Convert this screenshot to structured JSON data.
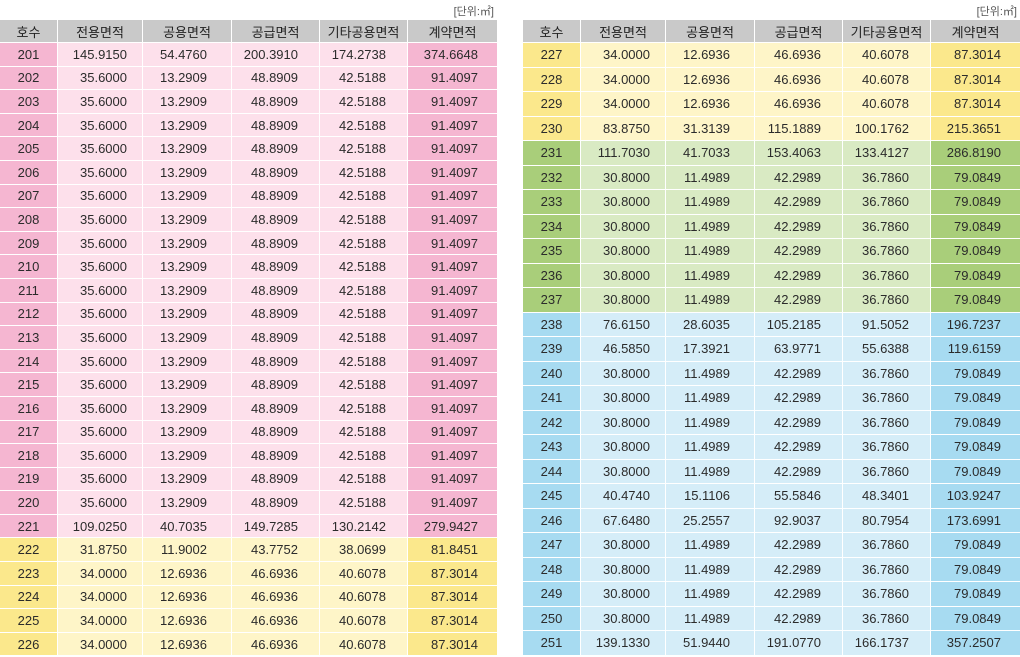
{
  "header_color": "#c9c9c9",
  "tables": [
    {
      "unit_label": "[단위:㎡]",
      "columns": [
        "호수",
        "전용면적",
        "공용면적",
        "공급면적",
        "기타공용면적",
        "계약면적"
      ],
      "sections": [
        {
          "key_color": "#f5b6d1",
          "cell_color": "#fde0eb",
          "rows": [
            [
              "201",
              "145.9150",
              "54.4760",
              "200.3910",
              "174.2738",
              "374.6648"
            ],
            [
              "202",
              "35.6000",
              "13.2909",
              "48.8909",
              "42.5188",
              "91.4097"
            ],
            [
              "203",
              "35.6000",
              "13.2909",
              "48.8909",
              "42.5188",
              "91.4097"
            ],
            [
              "204",
              "35.6000",
              "13.2909",
              "48.8909",
              "42.5188",
              "91.4097"
            ],
            [
              "205",
              "35.6000",
              "13.2909",
              "48.8909",
              "42.5188",
              "91.4097"
            ],
            [
              "206",
              "35.6000",
              "13.2909",
              "48.8909",
              "42.5188",
              "91.4097"
            ],
            [
              "207",
              "35.6000",
              "13.2909",
              "48.8909",
              "42.5188",
              "91.4097"
            ],
            [
              "208",
              "35.6000",
              "13.2909",
              "48.8909",
              "42.5188",
              "91.4097"
            ],
            [
              "209",
              "35.6000",
              "13.2909",
              "48.8909",
              "42.5188",
              "91.4097"
            ],
            [
              "210",
              "35.6000",
              "13.2909",
              "48.8909",
              "42.5188",
              "91.4097"
            ],
            [
              "211",
              "35.6000",
              "13.2909",
              "48.8909",
              "42.5188",
              "91.4097"
            ],
            [
              "212",
              "35.6000",
              "13.2909",
              "48.8909",
              "42.5188",
              "91.4097"
            ],
            [
              "213",
              "35.6000",
              "13.2909",
              "48.8909",
              "42.5188",
              "91.4097"
            ],
            [
              "214",
              "35.6000",
              "13.2909",
              "48.8909",
              "42.5188",
              "91.4097"
            ],
            [
              "215",
              "35.6000",
              "13.2909",
              "48.8909",
              "42.5188",
              "91.4097"
            ],
            [
              "216",
              "35.6000",
              "13.2909",
              "48.8909",
              "42.5188",
              "91.4097"
            ],
            [
              "217",
              "35.6000",
              "13.2909",
              "48.8909",
              "42.5188",
              "91.4097"
            ],
            [
              "218",
              "35.6000",
              "13.2909",
              "48.8909",
              "42.5188",
              "91.4097"
            ],
            [
              "219",
              "35.6000",
              "13.2909",
              "48.8909",
              "42.5188",
              "91.4097"
            ],
            [
              "220",
              "35.6000",
              "13.2909",
              "48.8909",
              "42.5188",
              "91.4097"
            ],
            [
              "221",
              "109.0250",
              "40.7035",
              "149.7285",
              "130.2142",
              "279.9427"
            ]
          ]
        },
        {
          "key_color": "#fbe88c",
          "cell_color": "#fef5c8",
          "rows": [
            [
              "222",
              "31.8750",
              "11.9002",
              "43.7752",
              "38.0699",
              "81.8451"
            ],
            [
              "223",
              "34.0000",
              "12.6936",
              "46.6936",
              "40.6078",
              "87.3014"
            ],
            [
              "224",
              "34.0000",
              "12.6936",
              "46.6936",
              "40.6078",
              "87.3014"
            ],
            [
              "225",
              "34.0000",
              "12.6936",
              "46.6936",
              "40.6078",
              "87.3014"
            ],
            [
              "226",
              "34.0000",
              "12.6936",
              "46.6936",
              "40.6078",
              "87.3014"
            ]
          ]
        }
      ]
    },
    {
      "unit_label": "[단위:㎡]",
      "columns": [
        "호수",
        "전용면적",
        "공용면적",
        "공급면적",
        "기타공용면적",
        "계약면적"
      ],
      "sections": [
        {
          "key_color": "#fbe88c",
          "cell_color": "#fef5c8",
          "rows": [
            [
              "227",
              "34.0000",
              "12.6936",
              "46.6936",
              "40.6078",
              "87.3014"
            ],
            [
              "228",
              "34.0000",
              "12.6936",
              "46.6936",
              "40.6078",
              "87.3014"
            ],
            [
              "229",
              "34.0000",
              "12.6936",
              "46.6936",
              "40.6078",
              "87.3014"
            ],
            [
              "230",
              "83.8750",
              "31.3139",
              "115.1889",
              "100.1762",
              "215.3651"
            ]
          ]
        },
        {
          "key_color": "#a9ce7a",
          "cell_color": "#d9eac3",
          "rows": [
            [
              "231",
              "111.7030",
              "41.7033",
              "153.4063",
              "133.4127",
              "286.8190"
            ],
            [
              "232",
              "30.8000",
              "11.4989",
              "42.2989",
              "36.7860",
              "79.0849"
            ],
            [
              "233",
              "30.8000",
              "11.4989",
              "42.2989",
              "36.7860",
              "79.0849"
            ],
            [
              "234",
              "30.8000",
              "11.4989",
              "42.2989",
              "36.7860",
              "79.0849"
            ],
            [
              "235",
              "30.8000",
              "11.4989",
              "42.2989",
              "36.7860",
              "79.0849"
            ],
            [
              "236",
              "30.8000",
              "11.4989",
              "42.2989",
              "36.7860",
              "79.0849"
            ],
            [
              "237",
              "30.8000",
              "11.4989",
              "42.2989",
              "36.7860",
              "79.0849"
            ]
          ]
        },
        {
          "key_color": "#a7dbf1",
          "cell_color": "#d5edf8",
          "rows": [
            [
              "238",
              "76.6150",
              "28.6035",
              "105.2185",
              "91.5052",
              "196.7237"
            ],
            [
              "239",
              "46.5850",
              "17.3921",
              "63.9771",
              "55.6388",
              "119.6159"
            ],
            [
              "240",
              "30.8000",
              "11.4989",
              "42.2989",
              "36.7860",
              "79.0849"
            ],
            [
              "241",
              "30.8000",
              "11.4989",
              "42.2989",
              "36.7860",
              "79.0849"
            ],
            [
              "242",
              "30.8000",
              "11.4989",
              "42.2989",
              "36.7860",
              "79.0849"
            ],
            [
              "243",
              "30.8000",
              "11.4989",
              "42.2989",
              "36.7860",
              "79.0849"
            ],
            [
              "244",
              "30.8000",
              "11.4989",
              "42.2989",
              "36.7860",
              "79.0849"
            ],
            [
              "245",
              "40.4740",
              "15.1106",
              "55.5846",
              "48.3401",
              "103.9247"
            ],
            [
              "246",
              "67.6480",
              "25.2557",
              "92.9037",
              "80.7954",
              "173.6991"
            ],
            [
              "247",
              "30.8000",
              "11.4989",
              "42.2989",
              "36.7860",
              "79.0849"
            ],
            [
              "248",
              "30.8000",
              "11.4989",
              "42.2989",
              "36.7860",
              "79.0849"
            ],
            [
              "249",
              "30.8000",
              "11.4989",
              "42.2989",
              "36.7860",
              "79.0849"
            ],
            [
              "250",
              "30.8000",
              "11.4989",
              "42.2989",
              "36.7860",
              "79.0849"
            ],
            [
              "251",
              "139.1330",
              "51.9440",
              "191.0770",
              "166.1737",
              "357.2507"
            ]
          ]
        }
      ]
    }
  ]
}
